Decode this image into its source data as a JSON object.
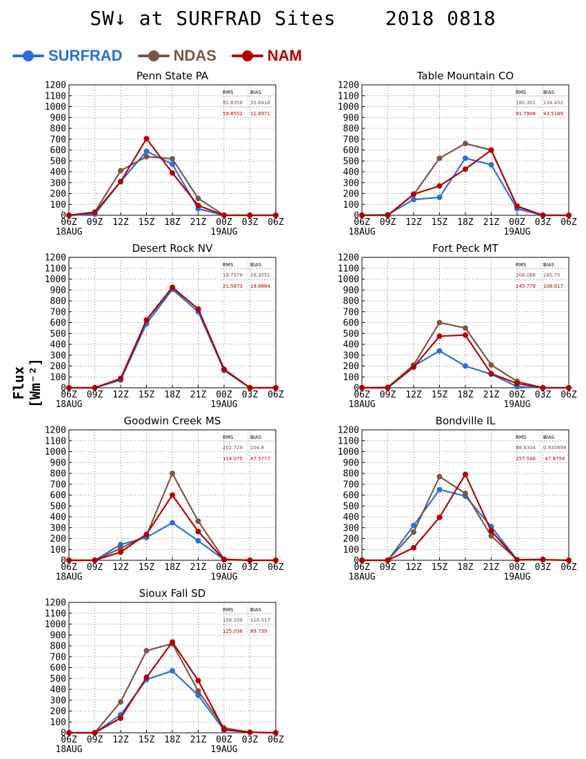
{
  "header": {
    "title": "SW↓ at SURFRAD Sites    2018 0818"
  },
  "figure": {
    "ylabel": "Flux [Wm⁻²]"
  },
  "legend": [
    {
      "name": "SURFRAD",
      "color": "#2a6fdb"
    },
    {
      "name": "NDAS",
      "color": "#7b5547"
    },
    {
      "name": "NAM",
      "color": "#b40000"
    }
  ],
  "stats_headers": [
    "RMS",
    "BIAS"
  ],
  "chart_data": [
    {
      "type": "line",
      "title": "Penn State PA",
      "x": [
        "06Z",
        "09Z",
        "12Z",
        "15Z",
        "18Z",
        "21Z",
        "00Z",
        "03Z",
        "06Z"
      ],
      "x_sublabels": [
        "18AUG",
        "",
        "",
        "",
        "",
        "",
        "19AUG",
        "",
        ""
      ],
      "ylim": [
        0,
        1200
      ],
      "yticks": [
        0,
        100,
        200,
        300,
        400,
        500,
        600,
        700,
        800,
        900,
        1000,
        1100,
        1200
      ],
      "grid": true,
      "series": [
        {
          "name": "SURFRAD",
          "values": [
            0,
            10,
            310,
            590,
            470,
            60,
            0,
            null,
            null
          ]
        },
        {
          "name": "NDAS",
          "values": [
            0,
            30,
            410,
            540,
            520,
            155,
            0,
            0,
            0
          ]
        },
        {
          "name": "NAM",
          "values": [
            0,
            25,
            310,
            705,
            390,
            90,
            0,
            0,
            0
          ]
        }
      ],
      "stats": [
        {
          "series": "NDAS",
          "rms": "81.8358",
          "bias": "33.8418"
        },
        {
          "series": "NAM",
          "rms": "59.8552",
          "bias": "11.8971"
        }
      ]
    },
    {
      "type": "line",
      "title": "Table Mountain CO",
      "x": [
        "06Z",
        "09Z",
        "12Z",
        "15Z",
        "18Z",
        "21Z",
        "00Z",
        "03Z",
        "06Z"
      ],
      "x_sublabels": [
        "18AUG",
        "",
        "",
        "",
        "",
        "",
        "19AUG",
        "",
        ""
      ],
      "ylim": [
        0,
        1200
      ],
      "yticks": [
        0,
        100,
        200,
        300,
        400,
        500,
        600,
        700,
        800,
        900,
        1000,
        1100,
        1200
      ],
      "grid": true,
      "series": [
        {
          "name": "SURFRAD",
          "values": [
            0,
            5,
            145,
            165,
            525,
            465,
            60,
            0,
            null
          ]
        },
        {
          "name": "NDAS",
          "values": [
            0,
            0,
            190,
            525,
            660,
            600,
            80,
            0,
            0
          ]
        },
        {
          "name": "NAM",
          "values": [
            0,
            0,
            195,
            270,
            425,
            600,
            85,
            0,
            0
          ]
        }
      ],
      "stats": [
        {
          "series": "NDAS",
          "rms": "180.301",
          "bias": "134.452"
        },
        {
          "series": "NAM",
          "rms": "91.7908",
          "bias": "43.5189"
        }
      ]
    },
    {
      "type": "line",
      "title": "Desert Rock NV",
      "x": [
        "06Z",
        "09Z",
        "12Z",
        "15Z",
        "18Z",
        "21Z",
        "00Z",
        "03Z",
        "06Z"
      ],
      "x_sublabels": [
        "18AUG",
        "",
        "",
        "",
        "",
        "",
        "19AUG",
        "",
        ""
      ],
      "ylim": [
        0,
        1200
      ],
      "yticks": [
        0,
        100,
        200,
        300,
        400,
        500,
        600,
        700,
        800,
        900,
        1000,
        1100,
        1200
      ],
      "grid": true,
      "series": [
        {
          "name": "SURFRAD",
          "values": [
            0,
            0,
            70,
            590,
            905,
            700,
            160,
            0,
            null
          ]
        },
        {
          "name": "NDAS",
          "values": [
            0,
            0,
            85,
            620,
            920,
            725,
            170,
            0,
            0
          ]
        },
        {
          "name": "NAM",
          "values": [
            0,
            0,
            85,
            625,
            925,
            725,
            170,
            0,
            0
          ]
        }
      ],
      "stats": [
        {
          "series": "NDAS",
          "rms": "19.7978",
          "bias": "18.3551"
        },
        {
          "series": "NAM",
          "rms": "21.5873",
          "bias": "19.8884"
        }
      ]
    },
    {
      "type": "line",
      "title": "Fort Peck MT",
      "x": [
        "06Z",
        "09Z",
        "12Z",
        "15Z",
        "18Z",
        "21Z",
        "00Z",
        "03Z",
        "06Z"
      ],
      "x_sublabels": [
        "18AUG",
        "",
        "",
        "",
        "",
        "",
        "19AUG",
        "",
        ""
      ],
      "ylim": [
        0,
        1200
      ],
      "yticks": [
        0,
        100,
        200,
        300,
        400,
        500,
        600,
        700,
        800,
        900,
        1000,
        1100,
        1200
      ],
      "grid": true,
      "series": [
        {
          "name": "SURFRAD",
          "values": [
            0,
            0,
            200,
            340,
            200,
            125,
            10,
            0,
            null
          ]
        },
        {
          "name": "NDAS",
          "values": [
            0,
            5,
            210,
            600,
            550,
            210,
            60,
            0,
            0
          ]
        },
        {
          "name": "NAM",
          "values": [
            0,
            0,
            190,
            475,
            485,
            130,
            40,
            0,
            0
          ]
        }
      ],
      "stats": [
        {
          "series": "NDAS",
          "rms": "208.088",
          "bias": "185.75"
        },
        {
          "series": "NAM",
          "rms": "145.779",
          "bias": "108.817"
        }
      ]
    },
    {
      "type": "line",
      "title": "Goodwin Creek MS",
      "x": [
        "06Z",
        "09Z",
        "12Z",
        "15Z",
        "18Z",
        "21Z",
        "00Z",
        "03Z",
        "06Z"
      ],
      "x_sublabels": [
        "18AUG",
        "",
        "",
        "",
        "",
        "",
        "19AUG",
        "",
        ""
      ],
      "ylim": [
        0,
        1200
      ],
      "yticks": [
        0,
        100,
        200,
        300,
        400,
        500,
        600,
        700,
        800,
        900,
        1000,
        1100,
        1200
      ],
      "grid": true,
      "series": [
        {
          "name": "SURFRAD",
          "values": [
            0,
            0,
            145,
            210,
            345,
            180,
            5,
            null,
            null
          ]
        },
        {
          "name": "NDAS",
          "values": [
            0,
            0,
            110,
            230,
            800,
            360,
            10,
            0,
            0
          ]
        },
        {
          "name": "NAM",
          "values": [
            0,
            0,
            75,
            240,
            600,
            265,
            5,
            0,
            0
          ]
        }
      ],
      "stats": [
        {
          "series": "NDAS",
          "rms": "202.729",
          "bias": "104.8"
        },
        {
          "series": "NAM",
          "rms": "114.075",
          "bias": "47.5777"
        }
      ]
    },
    {
      "type": "line",
      "title": "Bondville IL",
      "x": [
        "06Z",
        "09Z",
        "12Z",
        "15Z",
        "18Z",
        "21Z",
        "00Z",
        "03Z",
        "06Z"
      ],
      "x_sublabels": [
        "18AUG",
        "",
        "",
        "",
        "",
        "",
        "19AUG",
        "",
        ""
      ],
      "ylim": [
        0,
        1200
      ],
      "yticks": [
        0,
        100,
        200,
        300,
        400,
        500,
        600,
        700,
        800,
        900,
        1000,
        1100,
        1200
      ],
      "grid": true,
      "series": [
        {
          "name": "SURFRAD",
          "values": [
            0,
            0,
            320,
            650,
            590,
            310,
            5,
            10,
            null
          ]
        },
        {
          "name": "NDAS",
          "values": [
            0,
            0,
            260,
            770,
            615,
            225,
            5,
            5,
            0
          ]
        },
        {
          "name": "NAM",
          "values": [
            0,
            0,
            115,
            395,
            790,
            270,
            5,
            5,
            0
          ]
        }
      ],
      "stats": [
        {
          "series": "NDAS",
          "rms": "88.8304",
          "bias": "0.935899"
        },
        {
          "series": "NAM",
          "rms": "157.548",
          "bias": "-47.8754"
        }
      ]
    },
    {
      "type": "line",
      "title": "Sioux Fall SD",
      "x": [
        "06Z",
        "09Z",
        "12Z",
        "15Z",
        "18Z",
        "21Z",
        "00Z",
        "03Z",
        "06Z"
      ],
      "x_sublabels": [
        "18AUG",
        "",
        "",
        "",
        "",
        "",
        "19AUG",
        "",
        ""
      ],
      "ylim": [
        0,
        1200
      ],
      "yticks": [
        0,
        100,
        200,
        300,
        400,
        500,
        600,
        700,
        800,
        900,
        1000,
        1100,
        1200
      ],
      "grid": true,
      "series": [
        {
          "name": "SURFRAD",
          "values": [
            0,
            0,
            165,
            490,
            570,
            345,
            25,
            5,
            null
          ]
        },
        {
          "name": "NDAS",
          "values": [
            0,
            0,
            285,
            755,
            820,
            385,
            45,
            5,
            0
          ]
        },
        {
          "name": "NAM",
          "values": [
            0,
            0,
            135,
            510,
            835,
            480,
            30,
            5,
            0
          ]
        }
      ],
      "stats": [
        {
          "series": "NDAS",
          "rms": "158.109",
          "bias": "114.517"
        },
        {
          "series": "NAM",
          "rms": "125.038",
          "bias": "89.739"
        }
      ]
    }
  ]
}
